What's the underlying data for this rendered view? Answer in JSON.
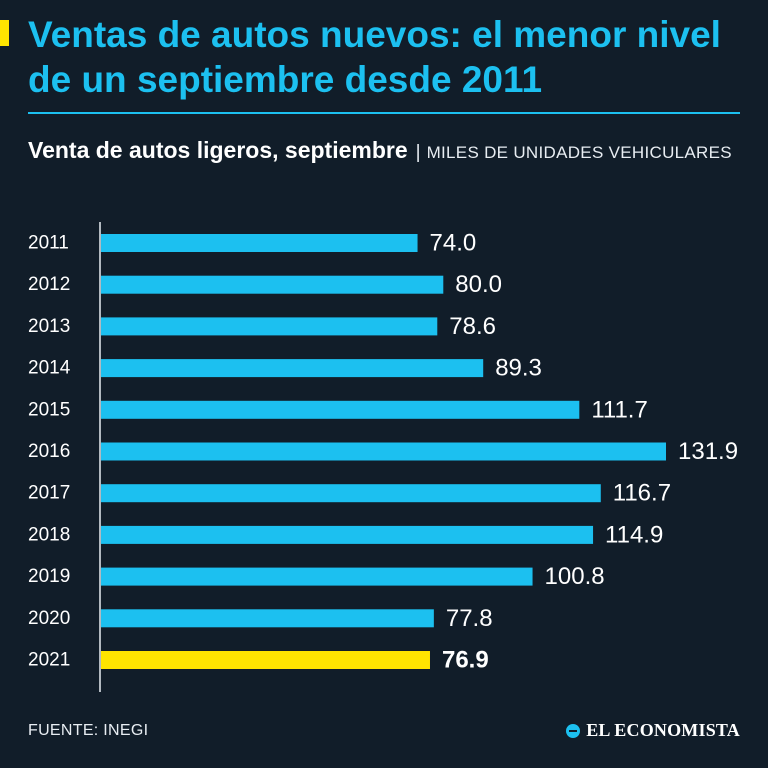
{
  "header": {
    "title": "Ventas de autos nuevos: el menor nivel de un septiembre desde 2011",
    "subtitle_main": "Venta de autos ligeros, septiembre",
    "subtitle_separator": "|",
    "subtitle_units": "MILES DE UNIDADES VEHICULARES"
  },
  "footer": {
    "source": "FUENTE: INEGI",
    "brand": "EL ECONOMISTA"
  },
  "colors": {
    "background": "#111d29",
    "accent": "#1cc0f0",
    "highlight": "#ffe500",
    "text": "#ffffff"
  },
  "chart_data": {
    "type": "bar",
    "orientation": "horizontal",
    "title": "Venta de autos ligeros, septiembre",
    "xlabel": "",
    "ylabel": "",
    "unit": "MILES DE UNIDADES VEHICULARES",
    "categories": [
      "2011",
      "2012",
      "2013",
      "2014",
      "2015",
      "2016",
      "2017",
      "2018",
      "2019",
      "2020",
      "2021"
    ],
    "values": [
      74.0,
      80.0,
      78.6,
      89.3,
      111.7,
      131.9,
      116.7,
      114.9,
      100.8,
      77.8,
      76.9
    ],
    "value_labels": [
      "74.0",
      "80.0",
      "78.6",
      "89.3",
      "111.7",
      "131.9",
      "116.7",
      "114.9",
      "100.8",
      "77.8",
      "76.9"
    ],
    "highlight_category": "2021",
    "xlim": [
      0,
      131.9
    ],
    "grid": false,
    "legend": "none"
  }
}
